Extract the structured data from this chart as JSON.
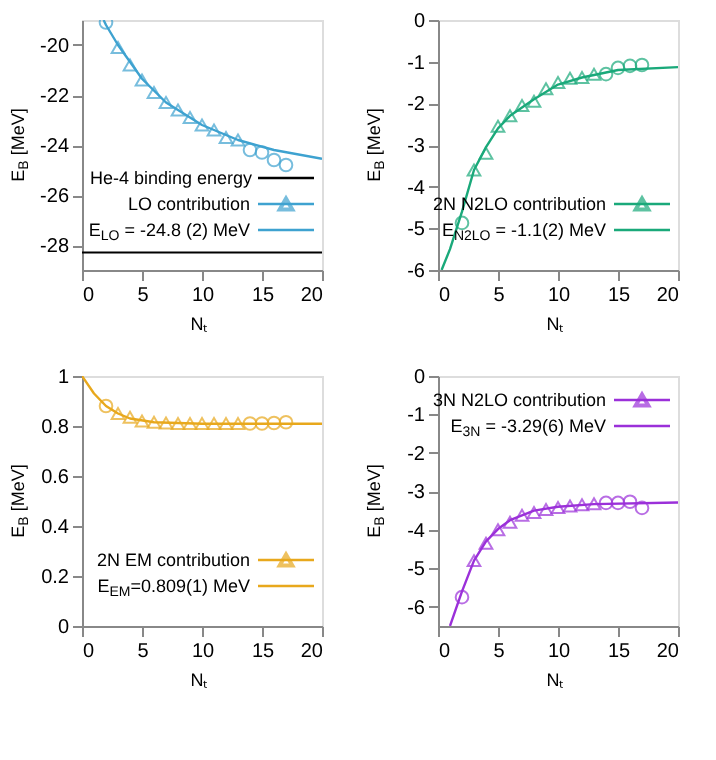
{
  "chart_data": [
    {
      "type": "scatter",
      "xlabel": "Nₜ",
      "ylabel": "E$_{B}$ [MeV]",
      "xlim": [
        0,
        20
      ],
      "xticks": [
        0,
        5,
        10,
        15,
        20
      ],
      "ylim": [
        -29,
        -19
      ],
      "yticks": [
        -28,
        -26,
        -24,
        -22,
        -20
      ],
      "grid": false,
      "legend": "bottom right",
      "ref_lines": [
        {
          "axis": "y",
          "value": -28.3,
          "label": "He-4 binding energy",
          "color": "#000000"
        }
      ],
      "series": [
        {
          "name": "LO contribution",
          "marker": "triangle",
          "color": "#3ea2d0",
          "x": [
            3,
            4,
            5,
            6,
            7,
            8,
            9,
            10,
            11,
            12,
            13
          ],
          "values": [
            -20.1,
            -20.8,
            -21.4,
            -21.9,
            -22.3,
            -22.6,
            -22.9,
            -23.2,
            -23.4,
            -23.7,
            -23.8
          ]
        },
        {
          "marker": "circle",
          "color": "#3ea2d0",
          "x": [
            2,
            14,
            15,
            16,
            17
          ],
          "values": [
            -19.1,
            -24.2,
            -24.3,
            -24.6,
            -24.8
          ]
        },
        {
          "name": "E$_{LO}$ = -24.8 (2) MeV",
          "type": "line",
          "color": "#3ea2d0",
          "x": [
            1.8,
            2,
            3,
            5,
            7,
            10,
            13,
            16,
            20
          ],
          "values": [
            -19,
            -19.2,
            -20.0,
            -21.35,
            -22.3,
            -23.2,
            -23.8,
            -24.2,
            -24.55
          ]
        }
      ]
    },
    {
      "type": "scatter",
      "xlabel": "Nₜ",
      "ylabel": "E$_{B}$ [MeV]",
      "xlim": [
        0,
        20
      ],
      "xticks": [
        0,
        5,
        10,
        15,
        20
      ],
      "ylim": [
        -6,
        0
      ],
      "yticks": [
        -6,
        -5,
        -4,
        -3,
        -2,
        -1,
        0
      ],
      "grid": false,
      "legend": "bottom right",
      "series": [
        {
          "name": "2N N2LO contribution",
          "marker": "triangle",
          "color": "#1aa97a",
          "x": [
            3,
            4,
            5,
            6,
            7,
            8,
            9,
            10,
            11,
            12,
            13
          ],
          "values": [
            -3.6,
            -3.2,
            -2.55,
            -2.3,
            -2.05,
            -1.95,
            -1.65,
            -1.5,
            -1.4,
            -1.38,
            -1.3
          ]
        },
        {
          "marker": "circle",
          "color": "#1aa97a",
          "x": [
            2,
            14,
            15,
            16,
            17
          ],
          "values": [
            -4.87,
            -1.3,
            -1.15,
            -1.1,
            -1.08
          ]
        },
        {
          "name": "E$_{N2LO}$ = -1.1(2) MeV",
          "type": "line",
          "color": "#1aa97a",
          "x": [
            0.3,
            1,
            2,
            3,
            4,
            5,
            6,
            8,
            10,
            12,
            15,
            20
          ],
          "values": [
            -6,
            -5.5,
            -4.6,
            -3.6,
            -3.05,
            -2.6,
            -2.3,
            -1.9,
            -1.55,
            -1.38,
            -1.2,
            -1.13
          ]
        }
      ]
    },
    {
      "type": "scatter",
      "xlabel": "Nₜ",
      "ylabel": "E$_{B}$ [MeV]",
      "xlim": [
        0,
        20
      ],
      "xticks": [
        0,
        5,
        10,
        15,
        20
      ],
      "ylim": [
        0,
        1
      ],
      "yticks": [
        0,
        0.2,
        0.4,
        0.6,
        0.8,
        1
      ],
      "grid": false,
      "legend": "bottom right",
      "series": [
        {
          "name": "2N EM contribution",
          "marker": "triangle",
          "color": "#e8a81c",
          "x": [
            3,
            4,
            5,
            6,
            7,
            8,
            9,
            10,
            11,
            12,
            13
          ],
          "values": [
            0.85,
            0.835,
            0.82,
            0.815,
            0.812,
            0.81,
            0.81,
            0.81,
            0.81,
            0.81,
            0.81
          ]
        },
        {
          "marker": "circle",
          "color": "#e8a81c",
          "x": [
            2,
            14,
            15,
            16,
            17
          ],
          "values": [
            0.88,
            0.81,
            0.81,
            0.812,
            0.815
          ]
        },
        {
          "name": "E$_{EM}$=0.809(1) MeV",
          "type": "line",
          "color": "#e8a81c",
          "x": [
            0,
            1,
            2,
            3,
            4,
            6,
            10,
            20
          ],
          "values": [
            1,
            0.93,
            0.88,
            0.85,
            0.83,
            0.815,
            0.809,
            0.809
          ]
        }
      ]
    },
    {
      "type": "scatter",
      "xlabel": "Nₜ",
      "ylabel": "E$_{B}$ [MeV]",
      "xlim": [
        0,
        20
      ],
      "xticks": [
        0,
        5,
        10,
        15,
        20
      ],
      "ylim": [
        -6.5,
        0
      ],
      "yticks": [
        -6,
        -5,
        -4,
        -3,
        -2,
        -1,
        0
      ],
      "grid": false,
      "legend": "top right",
      "series": [
        {
          "name": "3N N2LO contribution",
          "marker": "triangle",
          "color": "#9b30d9",
          "x": [
            3,
            4,
            5,
            6,
            7,
            8,
            9,
            10,
            11,
            12,
            13
          ],
          "values": [
            -4.8,
            -4.35,
            -4.0,
            -3.8,
            -3.62,
            -3.55,
            -3.47,
            -3.42,
            -3.38,
            -3.35,
            -3.32
          ]
        },
        {
          "marker": "circle",
          "color": "#9b30d9",
          "x": [
            2,
            14,
            15,
            16,
            17
          ],
          "values": [
            -5.75,
            -3.3,
            -3.3,
            -3.27,
            -3.43
          ]
        },
        {
          "name": "E$_{3N}$ = -3.29(6) MeV",
          "type": "line",
          "color": "#9b30d9",
          "x": [
            1,
            2,
            3,
            4,
            5,
            6,
            8,
            10,
            13,
            20
          ],
          "values": [
            -6.5,
            -5.6,
            -4.8,
            -4.3,
            -3.98,
            -3.75,
            -3.5,
            -3.4,
            -3.33,
            -3.29
          ]
        }
      ]
    }
  ]
}
